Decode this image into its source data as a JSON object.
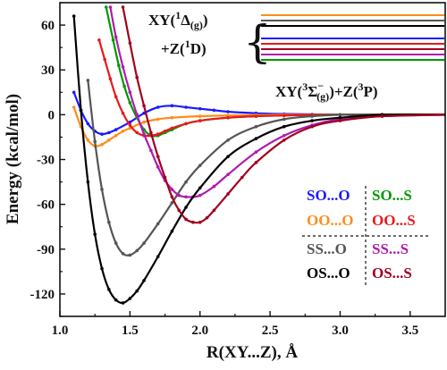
{
  "chart_data": {
    "type": "line",
    "xlabel": "R(XY...Z), Å",
    "ylabel": "Energy (kcal/mol)",
    "xlim": [
      1.0,
      3.75
    ],
    "ylim": [
      -135,
      75
    ],
    "xticks": [
      1.0,
      1.5,
      2.0,
      2.5,
      3.0,
      3.5
    ],
    "xtick_labels": [
      "1.0",
      "1.5",
      "2.0",
      "2.5",
      "3.0",
      "3.5"
    ],
    "yticks": [
      -120,
      -90,
      -60,
      -30,
      0,
      30,
      60
    ],
    "ytick_labels": [
      "-120",
      "-90",
      "-60",
      "-30",
      "0",
      "30",
      "60"
    ],
    "grid": false,
    "annotations": {
      "upper_state": {
        "line1": "XY(",
        "sup1": "1",
        "sym1": "Δ",
        "sub1": "(g)",
        "close1": ")",
        "line2": "+Z(",
        "sup2": "1",
        "line2b": "D)",
        "brace": "{"
      },
      "lower_state": {
        "pre": "XY(",
        "sup1": "3",
        "sym": "Σ",
        "sup_minus": "−",
        "sub": "(g)",
        "close": ")+Z(",
        "sup2": "3",
        "post": "P)"
      }
    },
    "legend_placement": "bottom-right",
    "series": [
      {
        "name": "SO...O",
        "color": "#1a1aff",
        "x": [
          1.1,
          1.15,
          1.2,
          1.25,
          1.3,
          1.35,
          1.4,
          1.5,
          1.6,
          1.7,
          1.8,
          1.9,
          2.0,
          2.1,
          2.2,
          2.4,
          2.6,
          2.8,
          3.0,
          3.3,
          3.75
        ],
        "y": [
          15,
          3,
          -6,
          -11,
          -13,
          -12,
          -10,
          -5,
          1,
          5,
          6,
          5,
          4,
          3,
          2,
          1,
          0.5,
          0.2,
          0,
          0,
          0
        ]
      },
      {
        "name": "SO...S",
        "color": "#009900",
        "x": [
          1.33,
          1.38,
          1.42,
          1.46,
          1.5,
          1.55,
          1.6,
          1.65,
          1.7,
          1.75,
          1.8,
          1.9,
          2.0,
          2.2,
          2.4,
          2.6,
          2.8,
          3.0,
          3.3,
          3.75
        ],
        "y": [
          72,
          50,
          33,
          19,
          8,
          -2,
          -10,
          -14,
          -14,
          -12,
          -10,
          -6,
          -4,
          -2,
          -1,
          -0.5,
          0,
          0,
          0,
          0
        ]
      },
      {
        "name": "OO...O",
        "color": "#ff8c1a",
        "x": [
          1.1,
          1.15,
          1.2,
          1.25,
          1.3,
          1.35,
          1.4,
          1.45,
          1.5,
          1.6,
          1.7,
          1.8,
          2.0,
          2.2,
          2.4,
          2.6,
          2.8,
          3.0,
          3.3,
          3.75
        ],
        "y": [
          5,
          -8,
          -17,
          -21,
          -20,
          -17,
          -14,
          -11,
          -9,
          -5,
          -3,
          -2,
          -1,
          -0.5,
          -0.2,
          0,
          0,
          0,
          0,
          0
        ]
      },
      {
        "name": "OO...S",
        "color": "#e61a1a",
        "x": [
          1.28,
          1.32,
          1.36,
          1.4,
          1.45,
          1.5,
          1.55,
          1.6,
          1.65,
          1.7,
          1.75,
          1.8,
          1.9,
          2.0,
          2.2,
          2.4,
          2.6,
          2.8,
          3.0,
          3.3,
          3.75
        ],
        "y": [
          50,
          37,
          24,
          12,
          1,
          -7,
          -12,
          -14,
          -14,
          -13,
          -11,
          -9,
          -6,
          -4,
          -2,
          -1,
          -0.5,
          0,
          0,
          0,
          0
        ]
      },
      {
        "name": "SS...O",
        "color": "#555555",
        "x": [
          1.2,
          1.25,
          1.3,
          1.35,
          1.4,
          1.45,
          1.5,
          1.55,
          1.6,
          1.7,
          1.8,
          1.9,
          2.0,
          2.2,
          2.4,
          2.6,
          2.8,
          3.0,
          3.3,
          3.75
        ],
        "y": [
          23,
          -18,
          -50,
          -72,
          -86,
          -93,
          -94,
          -91,
          -86,
          -73,
          -59,
          -45,
          -34,
          -17,
          -8,
          -3,
          -1,
          0,
          0,
          0
        ]
      },
      {
        "name": "SS...S",
        "color": "#b01ab0",
        "x": [
          1.36,
          1.4,
          1.45,
          1.5,
          1.55,
          1.6,
          1.65,
          1.7,
          1.75,
          1.8,
          1.85,
          1.9,
          1.95,
          2.0,
          2.1,
          2.2,
          2.4,
          2.6,
          2.8,
          3.0,
          3.3,
          3.75
        ],
        "y": [
          72,
          52,
          32,
          15,
          0,
          -13,
          -24,
          -35,
          -44,
          -50,
          -54,
          -55,
          -55,
          -54,
          -48,
          -40,
          -25,
          -14,
          -7,
          -3,
          -1,
          0
        ]
      },
      {
        "name": "OS...O",
        "color": "#000000",
        "x": [
          1.1,
          1.15,
          1.2,
          1.25,
          1.3,
          1.35,
          1.4,
          1.45,
          1.5,
          1.55,
          1.6,
          1.7,
          1.8,
          1.9,
          2.0,
          2.2,
          2.4,
          2.6,
          2.8,
          3.0,
          3.3,
          3.75
        ],
        "y": [
          66,
          3,
          -45,
          -80,
          -103,
          -117,
          -124,
          -126,
          -123,
          -118,
          -111,
          -95,
          -78,
          -62,
          -49,
          -28,
          -16,
          -8,
          -4,
          -2,
          0,
          0
        ]
      },
      {
        "name": "OS...S",
        "color": "#a0001e",
        "x": [
          1.45,
          1.5,
          1.55,
          1.6,
          1.65,
          1.7,
          1.75,
          1.8,
          1.85,
          1.9,
          1.95,
          2.0,
          2.05,
          2.1,
          2.2,
          2.3,
          2.4,
          2.6,
          2.8,
          3.0,
          3.3,
          3.75
        ],
        "y": [
          72,
          48,
          25,
          6,
          -12,
          -28,
          -42,
          -55,
          -64,
          -70,
          -72,
          -72,
          -69,
          -64,
          -53,
          -42,
          -32,
          -17,
          -8,
          -4,
          -1,
          0
        ]
      }
    ],
    "legend": {
      "rows": [
        [
          "SO...O",
          "SO...S"
        ],
        [
          "OO...O",
          "OO...S"
        ],
        [
          "SS...O",
          "SS...S"
        ],
        [
          "OS...O",
          "OS...S"
        ]
      ],
      "colors": [
        [
          "#1a1aff",
          "#009900"
        ],
        [
          "#ff8c1a",
          "#e61a1a"
        ],
        [
          "#555555",
          "#b01ab0"
        ],
        [
          "#000000",
          "#a0001e"
        ]
      ]
    }
  }
}
